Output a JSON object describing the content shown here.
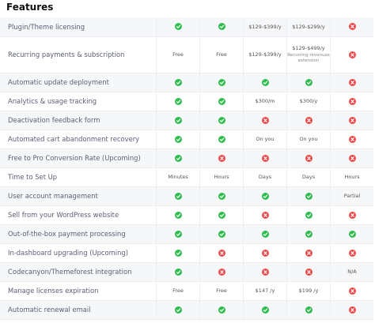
{
  "header": {
    "title": "Features"
  },
  "table": {
    "rows": [
      {
        "feature": "Plugin/Theme licensing",
        "cells": [
          {
            "icon": "check"
          },
          {
            "icon": "check"
          },
          {
            "text": "$129-$399/y"
          },
          {
            "text": "$129-$299/y"
          },
          {
            "icon": "cross"
          }
        ]
      },
      {
        "feature": "Recurring payments & subscription",
        "cells": [
          {
            "text": "Free"
          },
          {
            "text": "Free"
          },
          {
            "text": "$129-$399/y"
          },
          {
            "text": "$129-$499/y",
            "note": "Recurring revenues extension"
          },
          {
            "icon": "cross"
          }
        ]
      },
      {
        "feature": "Automatic update deployment",
        "cells": [
          {
            "icon": "check"
          },
          {
            "icon": "check"
          },
          {
            "icon": "check"
          },
          {
            "icon": "check"
          },
          {
            "icon": "cross"
          }
        ]
      },
      {
        "feature": "Analytics & usage tracking",
        "cells": [
          {
            "icon": "check"
          },
          {
            "icon": "check"
          },
          {
            "text": "$300/m"
          },
          {
            "text": "$300/y"
          },
          {
            "icon": "cross"
          }
        ]
      },
      {
        "feature": "Deactivation feedback form",
        "cells": [
          {
            "icon": "check"
          },
          {
            "icon": "check"
          },
          {
            "icon": "cross"
          },
          {
            "icon": "cross"
          },
          {
            "icon": "cross"
          }
        ]
      },
      {
        "feature": "Automated cart abandonment recovery",
        "cells": [
          {
            "icon": "check"
          },
          {
            "icon": "check"
          },
          {
            "text": "On you"
          },
          {
            "text": "On you"
          },
          {
            "icon": "cross"
          }
        ]
      },
      {
        "feature": "Free to Pro Conversion Rate (Upcoming)",
        "cells": [
          {
            "icon": "check"
          },
          {
            "icon": "cross"
          },
          {
            "icon": "cross"
          },
          {
            "icon": "cross"
          },
          {
            "icon": "cross"
          }
        ]
      },
      {
        "feature": "Time to Set Up",
        "cells": [
          {
            "text": "Minutes"
          },
          {
            "text": "Hours"
          },
          {
            "text": "Days"
          },
          {
            "text": "Days"
          },
          {
            "text": "Hours"
          }
        ]
      },
      {
        "feature": "User account management",
        "cells": [
          {
            "icon": "check"
          },
          {
            "icon": "check"
          },
          {
            "icon": "check"
          },
          {
            "icon": "check"
          },
          {
            "text": "Partial"
          }
        ]
      },
      {
        "feature": "Sell from your WordPress website",
        "cells": [
          {
            "icon": "check"
          },
          {
            "icon": "check"
          },
          {
            "icon": "cross"
          },
          {
            "icon": "check"
          },
          {
            "icon": "cross"
          }
        ]
      },
      {
        "feature": "Out-of-the-box payment processing",
        "cells": [
          {
            "icon": "check"
          },
          {
            "icon": "check"
          },
          {
            "icon": "check"
          },
          {
            "icon": "check"
          },
          {
            "icon": "check"
          }
        ]
      },
      {
        "feature": "In-dashboard upgrading (Upcoming)",
        "cells": [
          {
            "icon": "check"
          },
          {
            "icon": "cross"
          },
          {
            "icon": "cross"
          },
          {
            "icon": "cross"
          },
          {
            "icon": "cross"
          }
        ]
      },
      {
        "feature": "Codecanyon/Themeforest integration",
        "cells": [
          {
            "icon": "check"
          },
          {
            "icon": "cross"
          },
          {
            "icon": "cross"
          },
          {
            "icon": "cross"
          },
          {
            "text": "N/A"
          }
        ]
      },
      {
        "feature": "Manage licenses expiration",
        "cells": [
          {
            "text": "Free"
          },
          {
            "text": "Free"
          },
          {
            "text": "$147 /y"
          },
          {
            "text": "$199 /y"
          },
          {
            "icon": "cross"
          }
        ]
      },
      {
        "feature": "Automatic renewal email",
        "cells": [
          {
            "icon": "check"
          },
          {
            "icon": "check"
          },
          {
            "icon": "check"
          },
          {
            "icon": "check"
          },
          {
            "icon": "cross"
          }
        ]
      }
    ]
  }
}
